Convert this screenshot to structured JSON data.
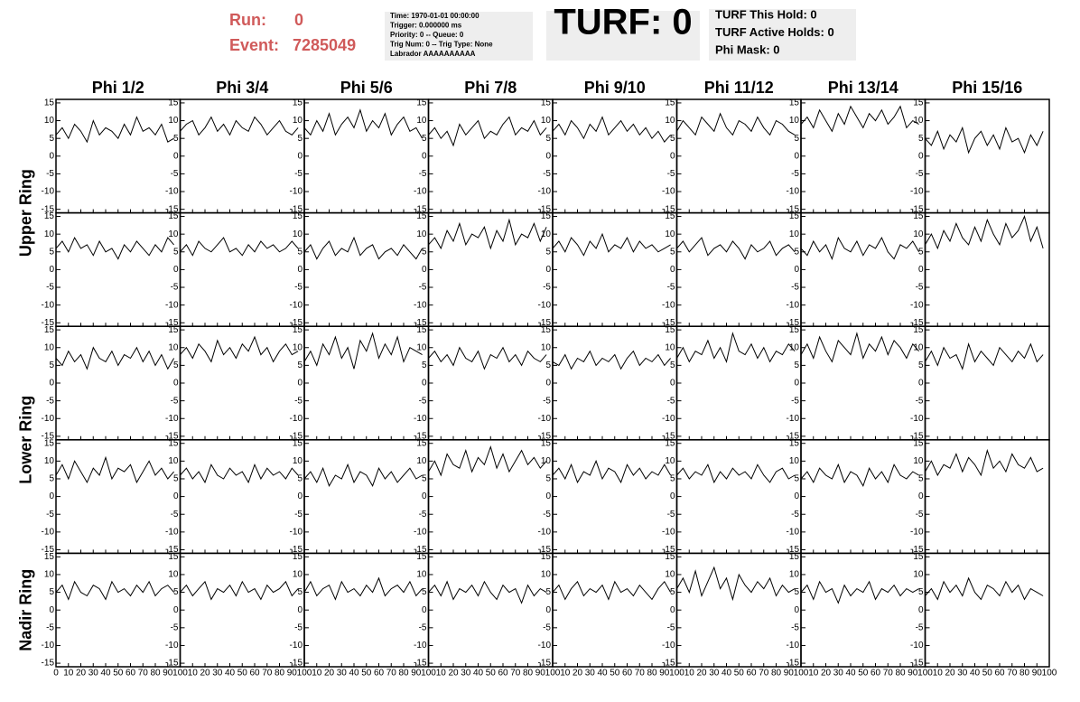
{
  "chart_data": {
    "type": "line",
    "header": {
      "run_label": "Run:",
      "run": 0,
      "event_label": "Event:",
      "event": 7285049,
      "info": [
        "Time: 1970-01-01 00:00:00",
        "Trigger: 0.000000 ms",
        "Priority: 0 -- Queue: 0",
        "Trig Num: 0 -- Trig Type: None",
        "Labrador AAAAAAAAAA"
      ],
      "turf": "TURF: 0",
      "turf_info": [
        "TURF This Hold: 0",
        "TURF Active Holds: 0",
        "Phi Mask: 0"
      ]
    },
    "columns": [
      "Phi 1/2",
      "Phi 3/4",
      "Phi 5/6",
      "Phi 7/8",
      "Phi 9/10",
      "Phi 11/12",
      "Phi 13/14",
      "Phi 15/16"
    ],
    "rings": [
      "Upper Ring",
      "Lower Ring",
      "Nadir Ring"
    ],
    "xlim": [
      0,
      100
    ],
    "ylim": [
      -16,
      16
    ],
    "xticks": [
      0,
      10,
      20,
      30,
      40,
      50,
      60,
      70,
      80,
      90,
      100
    ],
    "yticks": [
      -15,
      -10,
      -5,
      0,
      5,
      10,
      15
    ],
    "x": [
      0,
      5,
      10,
      15,
      20,
      25,
      30,
      35,
      40,
      45,
      50,
      55,
      60,
      65,
      70,
      75,
      80,
      85,
      90,
      95
    ],
    "panels": [
      [
        {
          "values": [
            6,
            8,
            5,
            9,
            7,
            4,
            10,
            6,
            8,
            7,
            5,
            9,
            6,
            11,
            7,
            8,
            6,
            9,
            4,
            5
          ]
        },
        {
          "values": [
            7,
            9,
            10,
            6,
            8,
            11,
            7,
            9,
            6,
            10,
            8,
            7,
            11,
            9,
            6,
            8,
            10,
            7,
            6,
            8
          ]
        },
        {
          "values": [
            8,
            6,
            10,
            7,
            12,
            6,
            9,
            11,
            8,
            13,
            7,
            10,
            8,
            12,
            6,
            9,
            11,
            7,
            8,
            5
          ]
        },
        {
          "values": [
            6,
            8,
            5,
            7,
            3,
            9,
            6,
            8,
            10,
            5,
            7,
            6,
            9,
            11,
            6,
            8,
            7,
            10,
            6,
            8
          ]
        },
        {
          "values": [
            7,
            9,
            6,
            10,
            8,
            5,
            9,
            7,
            11,
            6,
            8,
            10,
            7,
            9,
            6,
            8,
            5,
            7,
            4,
            6
          ]
        },
        {
          "values": [
            7,
            10,
            8,
            6,
            11,
            9,
            7,
            12,
            8,
            6,
            10,
            9,
            7,
            11,
            8,
            6,
            10,
            9,
            7,
            6
          ]
        },
        {
          "values": [
            9,
            11,
            8,
            13,
            10,
            7,
            12,
            9,
            14,
            11,
            8,
            12,
            10,
            13,
            9,
            11,
            14,
            8,
            10,
            9
          ]
        },
        {
          "values": [
            5,
            3,
            7,
            2,
            6,
            4,
            8,
            1,
            5,
            7,
            3,
            6,
            2,
            8,
            4,
            5,
            1,
            6,
            3,
            7
          ]
        }
      ],
      [
        {
          "values": [
            6,
            8,
            5,
            9,
            6,
            7,
            4,
            8,
            5,
            6,
            3,
            7,
            5,
            8,
            6,
            4,
            7,
            5,
            9,
            7
          ]
        },
        {
          "values": [
            5,
            7,
            4,
            8,
            6,
            5,
            7,
            9,
            5,
            6,
            4,
            7,
            5,
            8,
            6,
            7,
            5,
            6,
            8,
            6
          ]
        },
        {
          "values": [
            5,
            7,
            3,
            6,
            8,
            4,
            6,
            5,
            9,
            4,
            6,
            7,
            3,
            5,
            6,
            4,
            7,
            5,
            3,
            6
          ]
        },
        {
          "values": [
            7,
            9,
            6,
            11,
            8,
            13,
            7,
            10,
            9,
            12,
            6,
            11,
            8,
            14,
            7,
            10,
            9,
            13,
            8,
            12
          ]
        },
        {
          "values": [
            6,
            8,
            5,
            9,
            7,
            4,
            8,
            6,
            10,
            5,
            7,
            6,
            9,
            5,
            8,
            6,
            7,
            5,
            6,
            7
          ]
        },
        {
          "values": [
            6,
            8,
            5,
            7,
            9,
            4,
            6,
            7,
            5,
            8,
            6,
            3,
            7,
            5,
            6,
            8,
            4,
            6,
            7,
            5
          ]
        },
        {
          "values": [
            6,
            4,
            8,
            5,
            7,
            3,
            9,
            6,
            5,
            8,
            4,
            7,
            6,
            9,
            5,
            3,
            7,
            6,
            8,
            5
          ]
        },
        {
          "values": [
            7,
            10,
            6,
            11,
            8,
            13,
            9,
            7,
            12,
            8,
            14,
            10,
            7,
            13,
            9,
            11,
            15,
            8,
            12,
            6
          ]
        }
      ],
      [
        {
          "values": [
            7,
            5,
            9,
            6,
            8,
            4,
            10,
            7,
            6,
            9,
            5,
            8,
            7,
            10,
            6,
            9,
            5,
            8,
            4,
            7
          ]
        },
        {
          "values": [
            8,
            10,
            7,
            11,
            9,
            6,
            12,
            8,
            10,
            7,
            11,
            9,
            13,
            8,
            10,
            6,
            9,
            11,
            8,
            9
          ]
        },
        {
          "values": [
            6,
            9,
            5,
            11,
            8,
            13,
            7,
            10,
            4,
            12,
            9,
            14,
            7,
            11,
            8,
            13,
            6,
            10,
            9,
            8
          ]
        },
        {
          "values": [
            7,
            9,
            6,
            8,
            5,
            10,
            7,
            6,
            9,
            4,
            8,
            7,
            10,
            6,
            8,
            5,
            9,
            7,
            6,
            8
          ]
        },
        {
          "values": [
            6,
            5,
            8,
            4,
            7,
            6,
            9,
            5,
            7,
            6,
            8,
            4,
            7,
            9,
            5,
            7,
            6,
            8,
            5,
            7
          ]
        },
        {
          "values": [
            7,
            10,
            6,
            9,
            8,
            12,
            7,
            10,
            6,
            14,
            9,
            8,
            11,
            7,
            10,
            6,
            9,
            8,
            11,
            9
          ]
        },
        {
          "values": [
            8,
            11,
            7,
            13,
            9,
            6,
            12,
            10,
            8,
            14,
            7,
            11,
            9,
            13,
            8,
            12,
            10,
            7,
            11,
            9
          ]
        },
        {
          "values": [
            6,
            9,
            5,
            10,
            7,
            8,
            4,
            11,
            6,
            9,
            7,
            5,
            10,
            8,
            6,
            9,
            7,
            11,
            6,
            8
          ]
        }
      ],
      [
        {
          "values": [
            6,
            9,
            5,
            10,
            7,
            4,
            8,
            6,
            11,
            5,
            8,
            7,
            9,
            4,
            7,
            10,
            6,
            8,
            5,
            7
          ]
        },
        {
          "values": [
            6,
            8,
            5,
            7,
            4,
            9,
            6,
            5,
            8,
            6,
            7,
            4,
            9,
            5,
            8,
            6,
            7,
            5,
            8,
            6
          ]
        },
        {
          "values": [
            5,
            7,
            4,
            8,
            3,
            6,
            5,
            9,
            4,
            7,
            6,
            3,
            8,
            5,
            7,
            4,
            6,
            8,
            5,
            6
          ]
        },
        {
          "values": [
            7,
            10,
            6,
            12,
            9,
            8,
            13,
            7,
            11,
            9,
            14,
            8,
            12,
            7,
            10,
            13,
            9,
            11,
            8,
            10
          ]
        },
        {
          "values": [
            6,
            8,
            5,
            9,
            4,
            7,
            6,
            10,
            5,
            8,
            7,
            4,
            9,
            6,
            8,
            5,
            7,
            6,
            9,
            6
          ]
        },
        {
          "values": [
            6,
            8,
            5,
            7,
            6,
            9,
            4,
            7,
            5,
            8,
            6,
            7,
            5,
            9,
            6,
            4,
            7,
            8,
            5,
            6
          ]
        },
        {
          "values": [
            5,
            7,
            4,
            8,
            6,
            5,
            9,
            4,
            7,
            6,
            3,
            8,
            5,
            7,
            4,
            9,
            6,
            5,
            7,
            6
          ]
        },
        {
          "values": [
            7,
            10,
            6,
            9,
            8,
            12,
            7,
            11,
            9,
            6,
            13,
            8,
            10,
            7,
            12,
            9,
            8,
            11,
            7,
            8
          ]
        }
      ],
      [
        {
          "values": [
            5,
            7,
            3,
            8,
            5,
            4,
            7,
            6,
            3,
            8,
            5,
            6,
            4,
            7,
            5,
            8,
            4,
            6,
            7,
            5
          ]
        },
        {
          "values": [
            5,
            7,
            4,
            6,
            8,
            3,
            6,
            5,
            7,
            4,
            8,
            5,
            6,
            3,
            7,
            5,
            6,
            8,
            4,
            6
          ]
        },
        {
          "values": [
            5,
            8,
            4,
            6,
            7,
            3,
            8,
            5,
            6,
            4,
            7,
            5,
            9,
            4,
            6,
            7,
            5,
            8,
            4,
            6
          ]
        },
        {
          "values": [
            5,
            7,
            4,
            8,
            3,
            6,
            5,
            7,
            4,
            8,
            5,
            3,
            7,
            5,
            6,
            2,
            7,
            4,
            6,
            5
          ]
        },
        {
          "values": [
            5,
            7,
            3,
            6,
            8,
            4,
            6,
            5,
            7,
            3,
            8,
            5,
            6,
            4,
            7,
            5,
            3,
            6,
            8,
            5
          ]
        },
        {
          "values": [
            6,
            9,
            5,
            11,
            4,
            8,
            12,
            6,
            9,
            3,
            10,
            7,
            5,
            8,
            6,
            9,
            4,
            7,
            5,
            6
          ]
        },
        {
          "values": [
            5,
            7,
            3,
            8,
            5,
            6,
            2,
            7,
            4,
            6,
            5,
            8,
            3,
            6,
            5,
            7,
            4,
            6,
            5,
            6
          ]
        },
        {
          "values": [
            4,
            6,
            3,
            8,
            5,
            7,
            4,
            9,
            5,
            3,
            7,
            6,
            4,
            8,
            5,
            7,
            3,
            6,
            5,
            4
          ]
        }
      ]
    ]
  }
}
